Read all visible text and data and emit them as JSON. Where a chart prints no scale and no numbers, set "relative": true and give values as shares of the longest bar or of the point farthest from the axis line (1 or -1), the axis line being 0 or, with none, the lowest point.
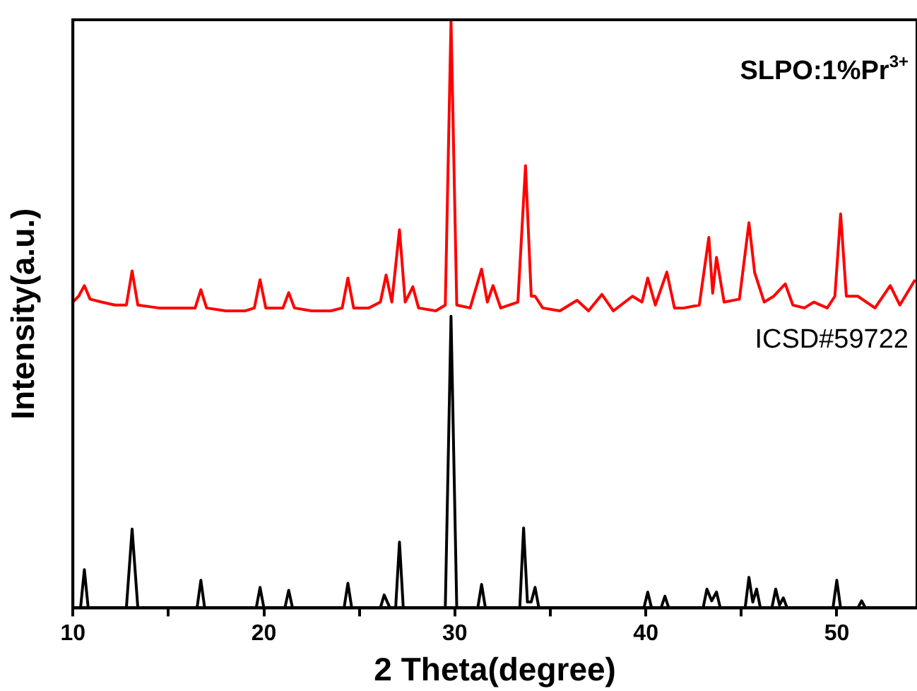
{
  "chart_data": {
    "type": "line",
    "xlabel": "2 Theta(degree)",
    "ylabel": "Intensity(a.u.)",
    "relative": true,
    "xlim": [
      10,
      54.2
    ],
    "xticks": [
      10,
      {
        "value": 15,
        "label": null
      },
      20,
      {
        "value": 25,
        "label": null
      },
      30,
      {
        "value": 35,
        "label": null
      },
      40,
      {
        "value": 45,
        "label": null
      },
      50
    ],
    "grid": false,
    "annotations": [
      "SLPO:1%Pr$^{3+}$",
      "ICSD#59722"
    ],
    "legend": false,
    "marker": "none",
    "line_style": "solid",
    "series": [
      {
        "color": "#ff0000",
        "x": [
          10,
          10.3,
          10.6,
          10.9,
          11.5,
          12.2,
          12.8,
          13.1,
          13.4,
          14.5,
          15.5,
          16.4,
          16.7,
          17.0,
          18.0,
          19.0,
          19.5,
          19.8,
          20.1,
          21.0,
          21.3,
          21.6,
          22.5,
          23.5,
          24.1,
          24.4,
          24.7,
          25.5,
          26.1,
          26.4,
          26.7,
          27.1,
          27.4,
          27.8,
          28.1,
          29.0,
          29.5,
          29.8,
          30.1,
          30.8,
          31.4,
          31.7,
          32.0,
          32.4,
          33.3,
          33.7,
          34.0,
          34.2,
          34.6,
          35.5,
          36.4,
          37.0,
          37.7,
          38.3,
          39.3,
          39.8,
          40.1,
          40.5,
          41.1,
          41.5,
          42.0,
          42.8,
          43.3,
          43.5,
          43.7,
          44.1,
          44.9,
          45.4,
          45.7,
          46.2,
          46.7,
          47.3,
          47.7,
          48.3,
          48.8,
          49.5,
          49.9,
          50.2,
          50.5,
          51.1,
          52.0,
          52.8,
          53.3,
          54.1
        ],
        "values": [
          0.52,
          0.53,
          0.548,
          0.525,
          0.52,
          0.515,
          0.515,
          0.573,
          0.515,
          0.51,
          0.51,
          0.51,
          0.541,
          0.51,
          0.505,
          0.505,
          0.51,
          0.558,
          0.51,
          0.51,
          0.536,
          0.51,
          0.505,
          0.505,
          0.51,
          0.561,
          0.51,
          0.51,
          0.52,
          0.566,
          0.52,
          0.643,
          0.52,
          0.546,
          0.51,
          0.505,
          0.515,
          1,
          0.515,
          0.51,
          0.576,
          0.52,
          0.548,
          0.51,
          0.52,
          0.752,
          0.53,
          0.53,
          0.51,
          0.505,
          0.523,
          0.505,
          0.533,
          0.505,
          0.53,
          0.52,
          0.561,
          0.515,
          0.571,
          0.51,
          0.51,
          0.515,
          0.63,
          0.535,
          0.596,
          0.52,
          0.525,
          0.655,
          0.57,
          0.52,
          0.53,
          0.551,
          0.515,
          0.51,
          0.52,
          0.51,
          0.53,
          0.67,
          0.53,
          0.53,
          0.51,
          0.548,
          0.515,
          0.558
        ]
      },
      {
        "color": "#000000",
        "x": [
          10,
          10.4,
          10.6,
          10.8,
          12.8,
          13.1,
          13.4,
          16.5,
          16.7,
          16.9,
          19.6,
          19.8,
          20.0,
          21.1,
          21.3,
          21.5,
          24.2,
          24.4,
          24.6,
          26.1,
          26.3,
          26.6,
          26.9,
          27.1,
          27.3,
          29.5,
          29.8,
          30.1,
          31.2,
          31.4,
          31.6,
          33.4,
          33.6,
          33.8,
          34.0,
          34.2,
          34.4,
          39.9,
          40.1,
          40.3,
          40.8,
          41.0,
          41.2,
          43.0,
          43.2,
          43.45,
          43.7,
          43.9,
          45.2,
          45.4,
          45.6,
          45.8,
          46.0,
          46.6,
          46.8,
          47.0,
          47.2,
          47.4,
          49.8,
          50.0,
          50.2,
          51.1,
          51.3,
          51.5,
          54.2
        ],
        "values": [
          0,
          0,
          0.065,
          0,
          0,
          0.134,
          0,
          0,
          0.047,
          0,
          0,
          0.035,
          0,
          0,
          0.03,
          0,
          0,
          0.042,
          0,
          0,
          0.022,
          0,
          0,
          0.112,
          0,
          0,
          0.496,
          0,
          0,
          0.04,
          0,
          0,
          0.136,
          0.01,
          0.01,
          0.035,
          0,
          0,
          0.027,
          0,
          0,
          0.02,
          0,
          0,
          0.032,
          0.012,
          0.027,
          0,
          0,
          0.052,
          0.01,
          0.032,
          0,
          0,
          0.032,
          0.005,
          0.017,
          0,
          0,
          0.047,
          0,
          0,
          0.012,
          0,
          0
        ]
      }
    ]
  }
}
